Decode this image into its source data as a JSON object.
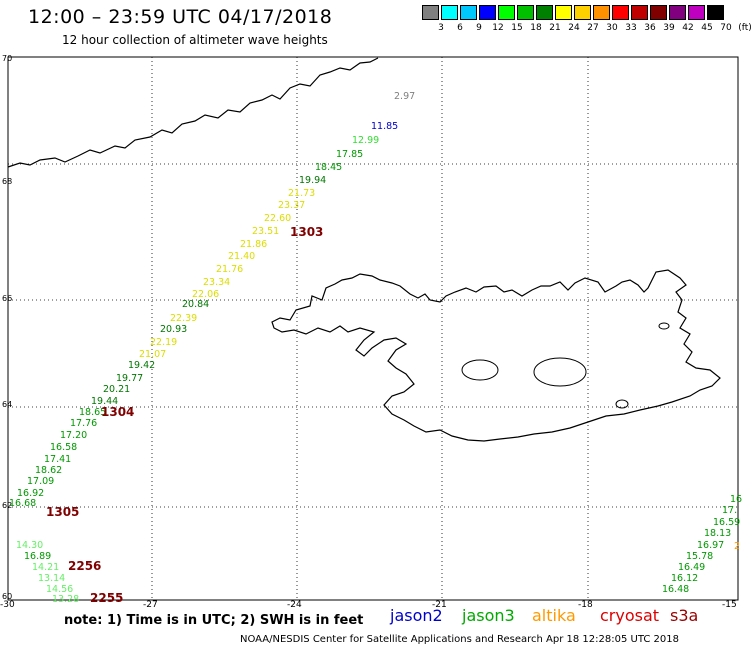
{
  "header": {
    "title": "12:00 – 23:59 UTC 04/17/2018",
    "subtitle": "12 hour collection of altimeter wave heights"
  },
  "scale": {
    "colors": [
      "#808080",
      "#00ffff",
      "#00c8ff",
      "#0000ff",
      "#00ff00",
      "#00c000",
      "#008000",
      "#ffff00",
      "#ffd000",
      "#ff9000",
      "#ff0000",
      "#c00000",
      "#800000",
      "#800080",
      "#c000c0",
      "#000000"
    ],
    "labels": [
      "3",
      "6",
      "9",
      "12",
      "15",
      "18",
      "21",
      "24",
      "27",
      "30",
      "33",
      "36",
      "39",
      "42",
      "45",
      "70",
      "(ft)"
    ]
  },
  "axes": {
    "lat_labels": [
      "70",
      "68",
      "66",
      "64",
      "62",
      "60"
    ],
    "lon_labels": [
      "-30",
      "-27",
      "-24",
      "-21",
      "-18",
      "-15"
    ]
  },
  "tracks": {
    "main": [
      {
        "v": "2.97",
        "c": "#808080"
      },
      {
        "v": "11.85",
        "c": "#0000cc"
      },
      {
        "v": "12.99",
        "c": "#33dd33"
      },
      {
        "v": "17.85",
        "c": "#009900"
      },
      {
        "v": "18.45",
        "c": "#009900"
      },
      {
        "v": "19.94",
        "c": "#007700"
      },
      {
        "v": "21.73",
        "c": "#dddd00"
      },
      {
        "v": "23.37",
        "c": "#dddd00"
      },
      {
        "v": "22.60",
        "c": "#dddd00"
      },
      {
        "v": "23.51",
        "c": "#dddd00"
      },
      {
        "v": "21.86",
        "c": "#dddd00"
      },
      {
        "v": "21.40",
        "c": "#dddd00"
      },
      {
        "v": "21.76",
        "c": "#dddd00"
      },
      {
        "v": "23.34",
        "c": "#dddd00"
      },
      {
        "v": "22.06",
        "c": "#dddd00"
      },
      {
        "v": "20.84",
        "c": "#007700"
      },
      {
        "v": "22.39",
        "c": "#dddd00"
      },
      {
        "v": "20.93",
        "c": "#007700"
      },
      {
        "v": "22.19",
        "c": "#dddd00"
      },
      {
        "v": "21.07",
        "c": "#dddd00"
      },
      {
        "v": "19.42",
        "c": "#007700"
      },
      {
        "v": "19.77",
        "c": "#007700"
      },
      {
        "v": "20.21",
        "c": "#007700"
      },
      {
        "v": "19.44",
        "c": "#007700"
      },
      {
        "v": "18.65",
        "c": "#009900"
      },
      {
        "v": "17.76",
        "c": "#009900"
      },
      {
        "v": "17.20",
        "c": "#009900"
      },
      {
        "v": "16.58",
        "c": "#009900"
      },
      {
        "v": "17.41",
        "c": "#009900"
      },
      {
        "v": "18.62",
        "c": "#009900"
      },
      {
        "v": "17.09",
        "c": "#009900"
      },
      {
        "v": "16.92",
        "c": "#009900"
      },
      {
        "v": "16.68",
        "c": "#009900"
      },
      {
        "v": "14.30",
        "c": "#66ee66"
      },
      {
        "v": "16.89",
        "c": "#009900"
      },
      {
        "v": "14.21",
        "c": "#66ee66"
      },
      {
        "v": "13.14",
        "c": "#66ee66"
      },
      {
        "v": "14.56",
        "c": "#66ee66"
      },
      {
        "v": "13.28",
        "c": "#66ee66"
      }
    ],
    "east": [
      {
        "v": "16",
        "c": "#009900"
      },
      {
        "v": "17.",
        "c": "#009900"
      },
      {
        "v": "16.59",
        "c": "#009900"
      },
      {
        "v": "18.13",
        "c": "#009900"
      },
      {
        "v": "16.97",
        "c": "#009900"
      },
      {
        "v": "15.78",
        "c": "#009900"
      },
      {
        "v": "16.49",
        "c": "#009900"
      },
      {
        "v": "16.12",
        "c": "#009900"
      },
      {
        "v": "16.48",
        "c": "#009900"
      },
      {
        "v": "2",
        "c": "#ff9900"
      }
    ],
    "times": [
      "1303",
      "1304",
      "1305",
      "2256",
      "2255"
    ]
  },
  "footer": {
    "note": "note: 1) Time is in UTC; 2) SWH is in feet",
    "missions": [
      {
        "name": "jason2",
        "color": "#0000cc"
      },
      {
        "name": "jason3",
        "color": "#00aa00"
      },
      {
        "name": "altika",
        "color": "#ff9900"
      },
      {
        "name": "cryosat",
        "color": "#dd0000"
      },
      {
        "name": "s3a",
        "color": "#990000"
      }
    ],
    "credit": "NOAA/NESDIS Center for Satellite Applications and Research    Apr 18 12:28:05 UTC 2018"
  }
}
